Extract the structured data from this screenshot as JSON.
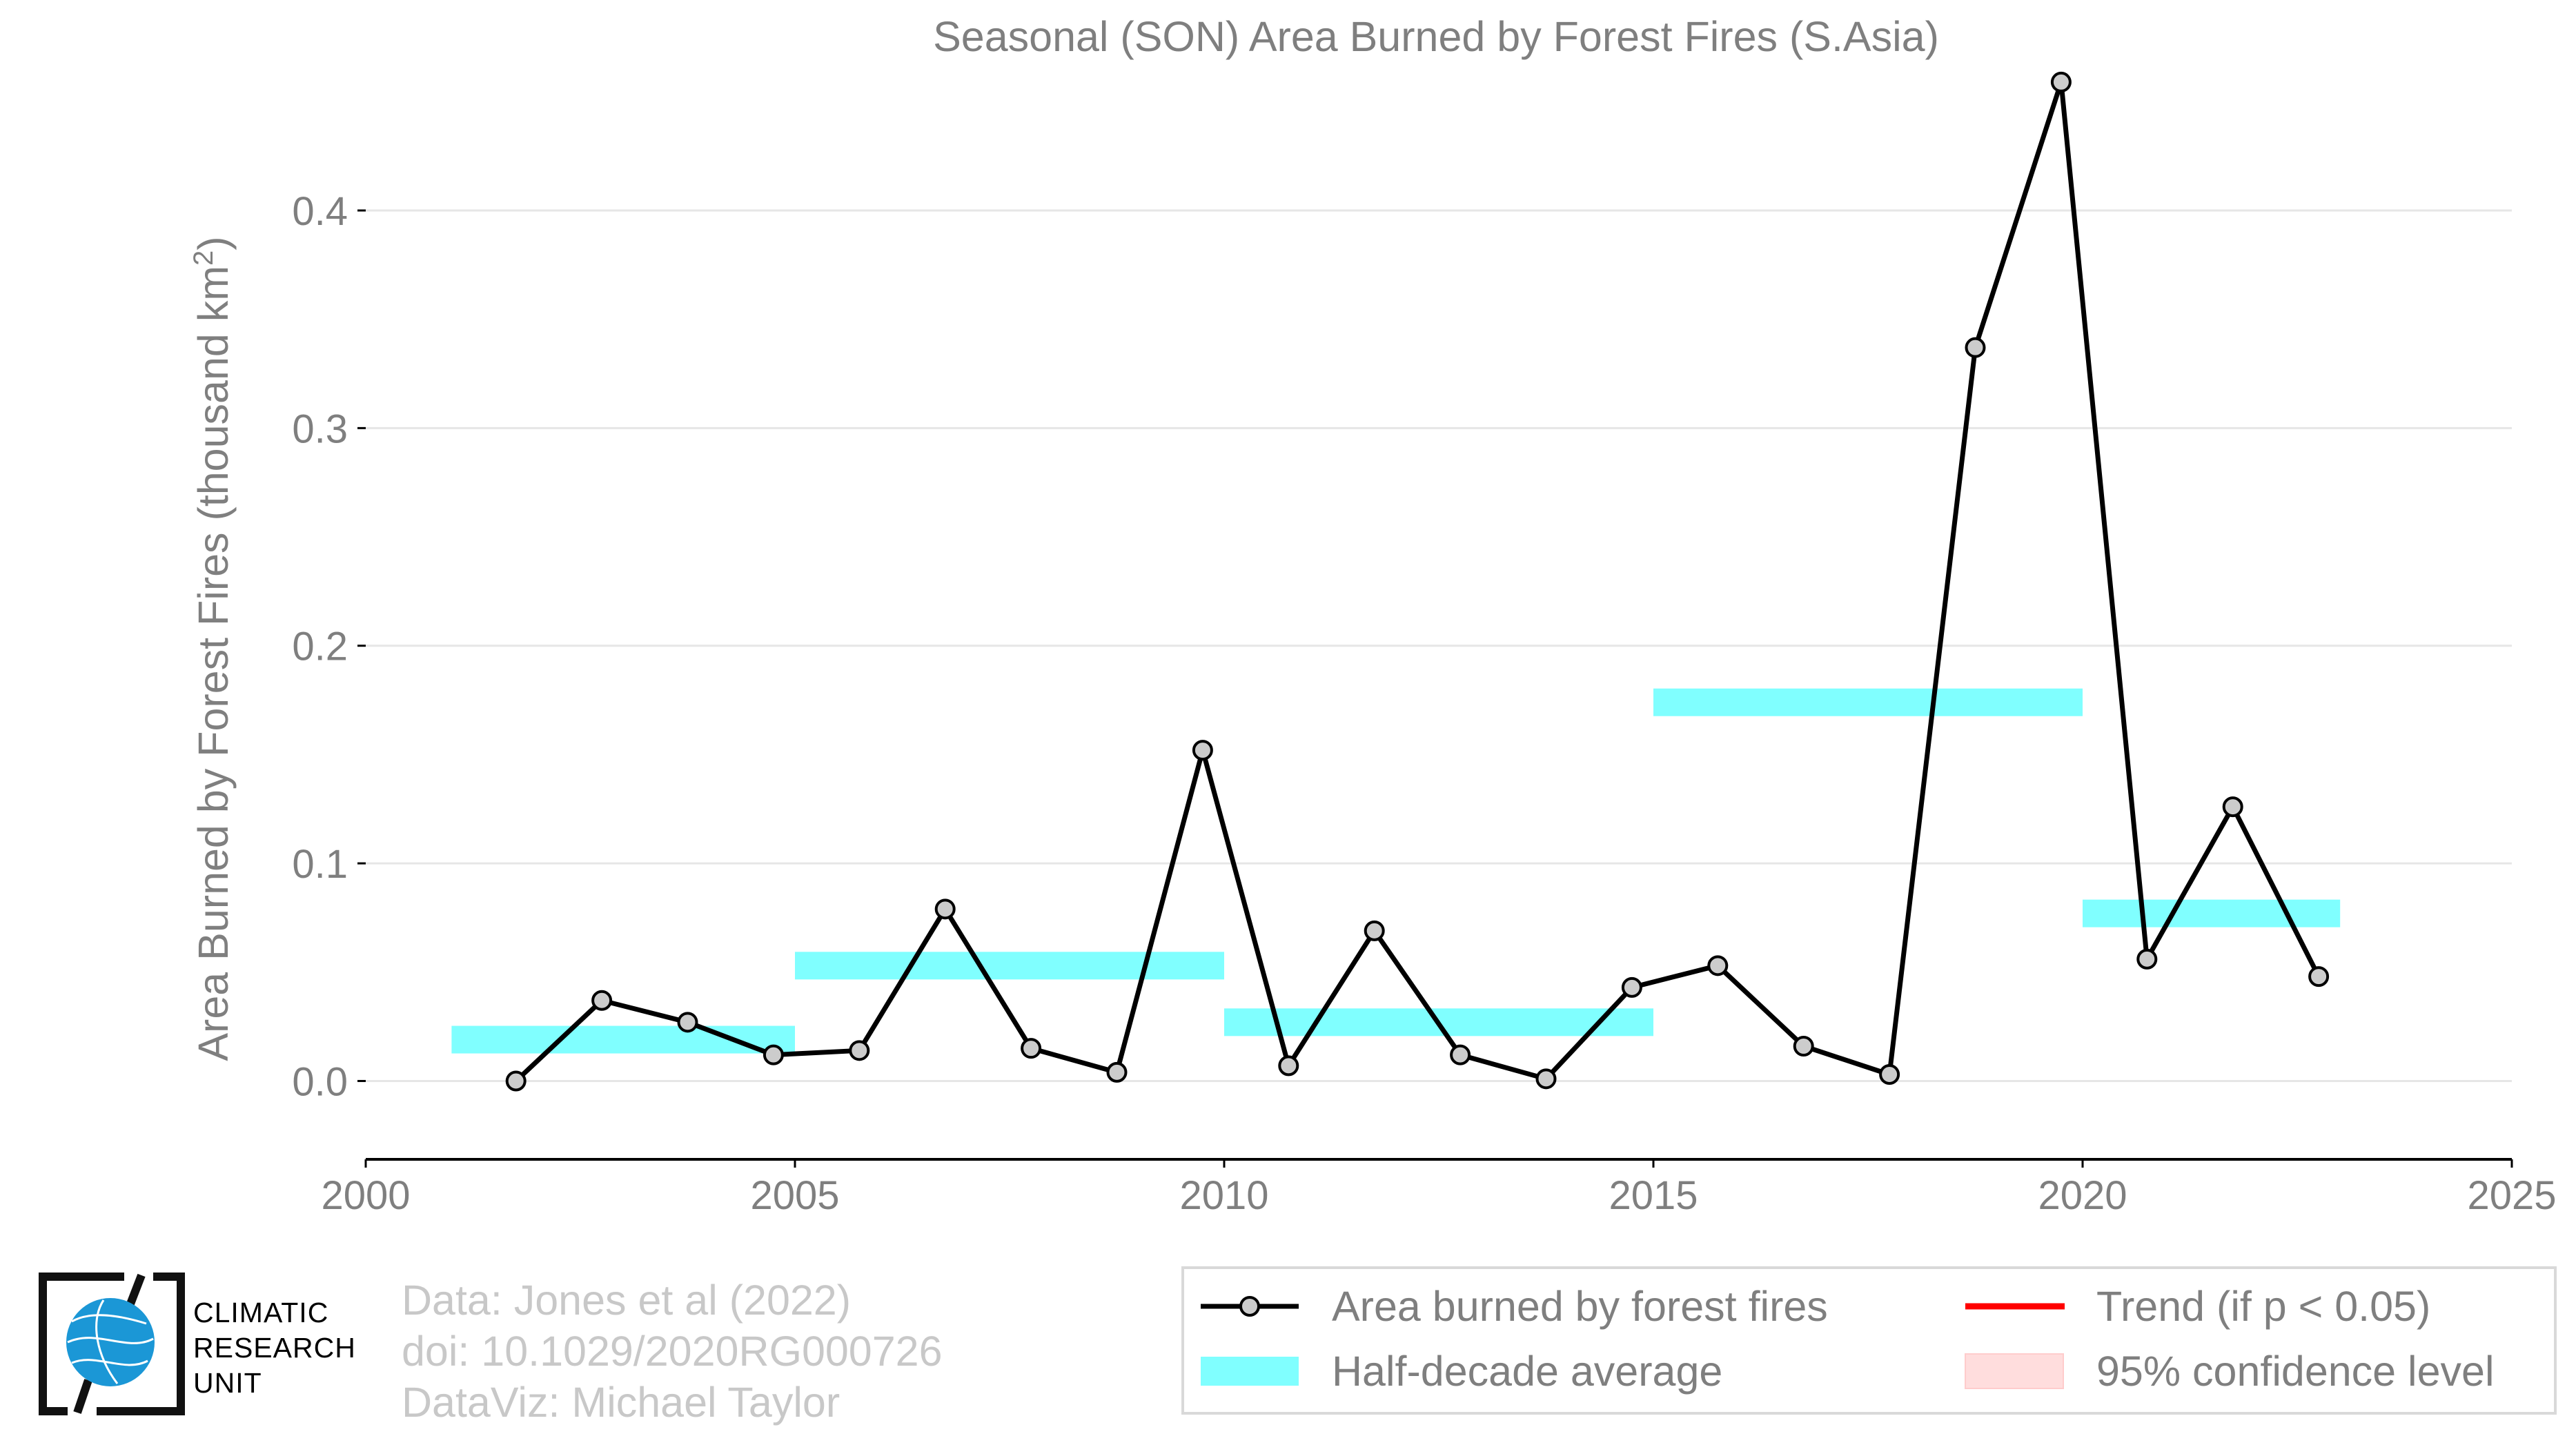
{
  "colors": {
    "line": "#000000",
    "marker_fill": "#cccccc",
    "half_decade": "#80ffff",
    "trend": "#ff0000",
    "confidence": "#ffdddd",
    "text_gray": "#7f7f7f",
    "footer_gray": "#c8c8c8",
    "grid": "#e6e6e6",
    "logo_blue": "#1b97d6"
  },
  "chart_data": {
    "type": "line",
    "title": "Seasonal (SON) Area Burned by Forest Fires (S.Asia)",
    "xlabel": "",
    "ylabel": "Area Burned by Forest Fires (thousand km",
    "ylabel_sup": "2",
    "ylabel_end": ")",
    "xlim": [
      2000,
      2025
    ],
    "ylim": [
      -0.036,
      0.465
    ],
    "x_ticks": [
      2000,
      2005,
      2010,
      2015,
      2020,
      2025
    ],
    "x_tick_labels": [
      "2000",
      "2005",
      "2010",
      "2015",
      "2020",
      "2025"
    ],
    "y_ticks": [
      0.0,
      0.1,
      0.2,
      0.3,
      0.4
    ],
    "y_tick_labels": [
      "0.0",
      "0.1",
      "0.2",
      "0.3",
      "0.4"
    ],
    "grid": "horizontal",
    "series": [
      {
        "name": "Area burned by forest fires",
        "x": [
          2001.75,
          2002.75,
          2003.75,
          2004.75,
          2005.75,
          2006.75,
          2007.75,
          2008.75,
          2009.75,
          2010.75,
          2011.75,
          2012.75,
          2013.75,
          2014.75,
          2015.75,
          2016.75,
          2017.75,
          2018.75,
          2019.75,
          2020.75,
          2021.75,
          2022.75
        ],
        "y": [
          0.0,
          0.037,
          0.027,
          0.012,
          0.014,
          0.079,
          0.015,
          0.004,
          0.152,
          0.007,
          0.069,
          0.012,
          0.001,
          0.043,
          0.053,
          0.016,
          0.003,
          0.337,
          0.459,
          0.056,
          0.126,
          0.048
        ]
      }
    ],
    "half_decade_average": {
      "name": "Half-decade average",
      "segments": [
        {
          "x0": 2001,
          "x1": 2005,
          "y": 0.019
        },
        {
          "x0": 2005,
          "x1": 2010,
          "y": 0.053
        },
        {
          "x0": 2010,
          "x1": 2015,
          "y": 0.027
        },
        {
          "x0": 2015,
          "x1": 2020,
          "y": 0.174
        },
        {
          "x0": 2020,
          "x1": 2023,
          "y": 0.077
        }
      ]
    },
    "legend": {
      "placement": "bottom-right",
      "items": [
        {
          "key": "line_marker",
          "label": "Area burned by forest fires"
        },
        {
          "key": "trend_line",
          "label": "Trend (if p < 0.05)"
        },
        {
          "key": "half_decade_band",
          "label": "Half-decade average"
        },
        {
          "key": "confidence_band",
          "label": "95% confidence level"
        }
      ]
    }
  },
  "footer": {
    "source_line1": "Data: Jones et al (2022)",
    "source_line2": "doi: 10.1029/2020RG000726",
    "source_line3": "DataViz: Michael Taylor"
  },
  "logo": {
    "line1": "CLIMATIC",
    "line2": "RESEARCH",
    "line3": "UNIT"
  }
}
